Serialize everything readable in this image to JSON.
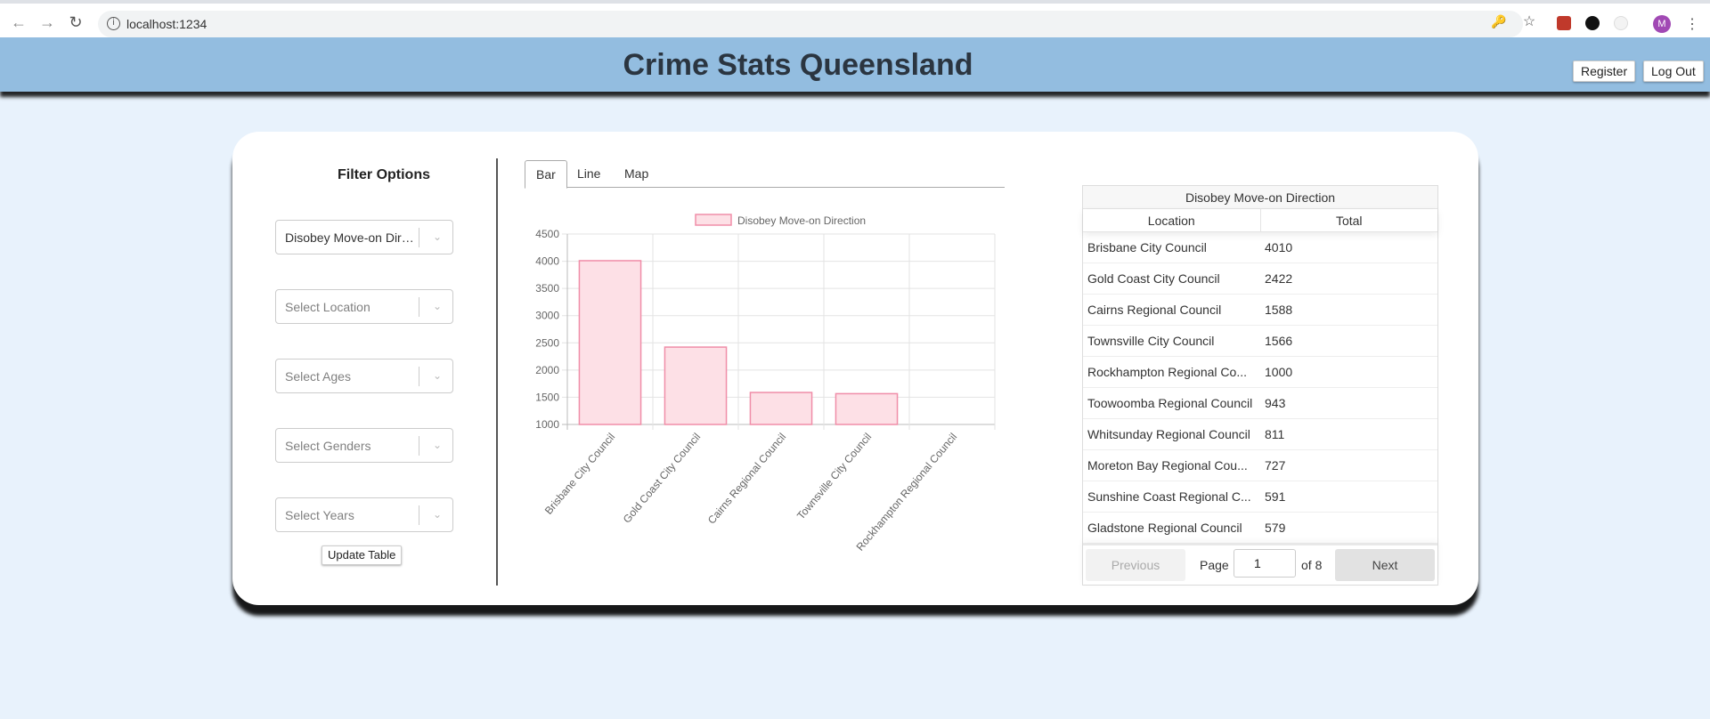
{
  "browser": {
    "url": "localhost:1234",
    "profile_initial": "M"
  },
  "header": {
    "title": "Crime Stats Queensland",
    "register_label": "Register",
    "logout_label": "Log Out"
  },
  "filters": {
    "title": "Filter Options",
    "offence_value": "Disobey Move-on Direction",
    "location_placeholder": "Select Location",
    "ages_placeholder": "Select Ages",
    "genders_placeholder": "Select Genders",
    "years_placeholder": "Select Years",
    "update_label": "Update Table"
  },
  "tabs": [
    {
      "label": "Bar",
      "active": true
    },
    {
      "label": "Line",
      "active": false
    },
    {
      "label": "Map",
      "active": false
    }
  ],
  "chart_data": {
    "type": "bar",
    "categories": [
      "Brisbane City Council",
      "Gold Coast City Council",
      "Cairns Regional Council",
      "Townsville City Council",
      "Rockhampton Regional Council"
    ],
    "series": [
      {
        "name": "Disobey Move-on Direction",
        "values": [
          4010,
          2422,
          1588,
          1566,
          1000
        ]
      }
    ],
    "ylim": [
      1000,
      4500
    ],
    "yticks": [
      1000,
      1500,
      2000,
      2500,
      3000,
      3500,
      4000,
      4500
    ],
    "legend": "top",
    "grid": true,
    "colors": {
      "fill": "#fde0e6",
      "stroke": "#f08da8"
    }
  },
  "table": {
    "caption": "Disobey Move-on Direction",
    "headers": [
      "Location",
      "Total"
    ],
    "rows": [
      [
        "Brisbane City Council",
        "4010"
      ],
      [
        "Gold Coast City Council",
        "2422"
      ],
      [
        "Cairns Regional Council",
        "1588"
      ],
      [
        "Townsville City Council",
        "1566"
      ],
      [
        "Rockhampton Regional Co...",
        "1000"
      ],
      [
        "Toowoomba Regional Council",
        "943"
      ],
      [
        "Whitsunday Regional Council",
        "811"
      ],
      [
        "Moreton Bay Regional Cou...",
        "727"
      ],
      [
        "Sunshine Coast Regional C...",
        "591"
      ],
      [
        "Gladstone Regional Council",
        "579"
      ]
    ],
    "previous_label": "Previous",
    "next_label": "Next",
    "page_label": "Page",
    "page_value": "1",
    "of_label": "of 8"
  }
}
